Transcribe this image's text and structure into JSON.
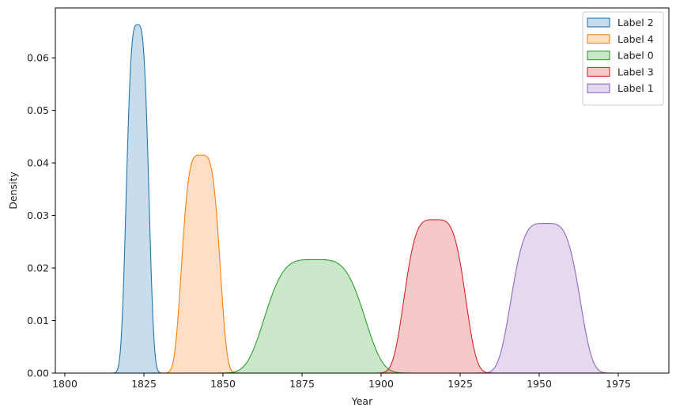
{
  "chart_data": {
    "type": "area",
    "title": "",
    "xlabel": "Year",
    "ylabel": "Density",
    "xlim": [
      1797,
      1991
    ],
    "ylim": [
      0,
      0.0695
    ],
    "x_ticks": [
      1800,
      1825,
      1850,
      1875,
      1900,
      1925,
      1950,
      1975
    ],
    "y_ticks": [
      0.0,
      0.01,
      0.02,
      0.03,
      0.04,
      0.05,
      0.06
    ],
    "y_tick_labels": [
      "0.00",
      "0.01",
      "0.02",
      "0.03",
      "0.04",
      "0.05",
      "0.06"
    ],
    "grid": false,
    "legend_position": "top-right",
    "series": [
      {
        "name": "Label 2",
        "color": "#1f77b4",
        "x_range": [
          1808.5,
          1833
        ],
        "peak_x": 1823,
        "peak_y": 0.0663,
        "width": 3.3,
        "shape": 0.5
      },
      {
        "name": "Label 4",
        "color": "#ff7f0e",
        "x_range": [
          1829,
          1863.5
        ],
        "peak_x": 1843,
        "peak_y": 0.0415,
        "width": 5.6,
        "shape": 0.7
      },
      {
        "name": "Label 0",
        "color": "#2ca02c",
        "x_range": [
          1836.5,
          1922
        ],
        "peak_x": 1879,
        "peak_y": 0.0216,
        "width": 14.5,
        "shape": 0.7
      },
      {
        "name": "Label 3",
        "color": "#d62728",
        "x_range": [
          1887,
          1946
        ],
        "peak_x": 1917,
        "peak_y": 0.0292,
        "width": 8.9,
        "shape": 0.7
      },
      {
        "name": "Label 1",
        "color": "#9467bd",
        "x_range": [
          1920,
          1985
        ],
        "peak_x": 1952,
        "peak_y": 0.0285,
        "width": 10.0,
        "shape": 0.7
      }
    ]
  }
}
